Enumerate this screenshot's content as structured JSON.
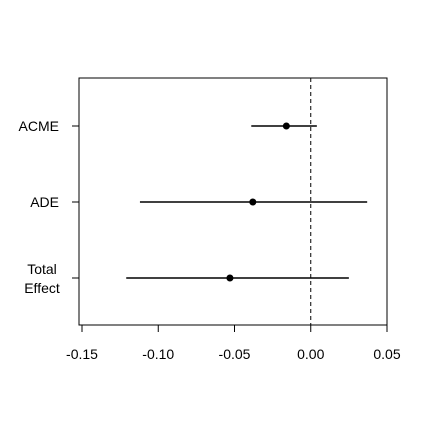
{
  "chart_data": {
    "type": "dot-interval",
    "title": "",
    "xlabel": "",
    "ylabel": "",
    "xlim": [
      -0.155,
      0.05
    ],
    "x_ticks": [
      -0.15,
      -0.1,
      -0.05,
      0.0,
      0.05
    ],
    "x_tick_labels": [
      "-0.15",
      "-0.10",
      "-0.05",
      "0.00",
      "0.05"
    ],
    "reference_line": {
      "x": 0.0,
      "style": "dashed"
    },
    "grid": false,
    "categories": [
      "ACME",
      "ADE",
      "Total Effect"
    ],
    "category_label_lines": [
      [
        "ACME"
      ],
      [
        "ADE"
      ],
      [
        "Total",
        "Effect"
      ]
    ],
    "estimates": [
      -0.016,
      -0.038,
      -0.053
    ],
    "lower": [
      -0.039,
      -0.112,
      -0.121
    ],
    "upper": [
      0.004,
      0.037,
      0.025
    ],
    "colors": {
      "ink": "#000000",
      "background": "#ffffff"
    }
  }
}
